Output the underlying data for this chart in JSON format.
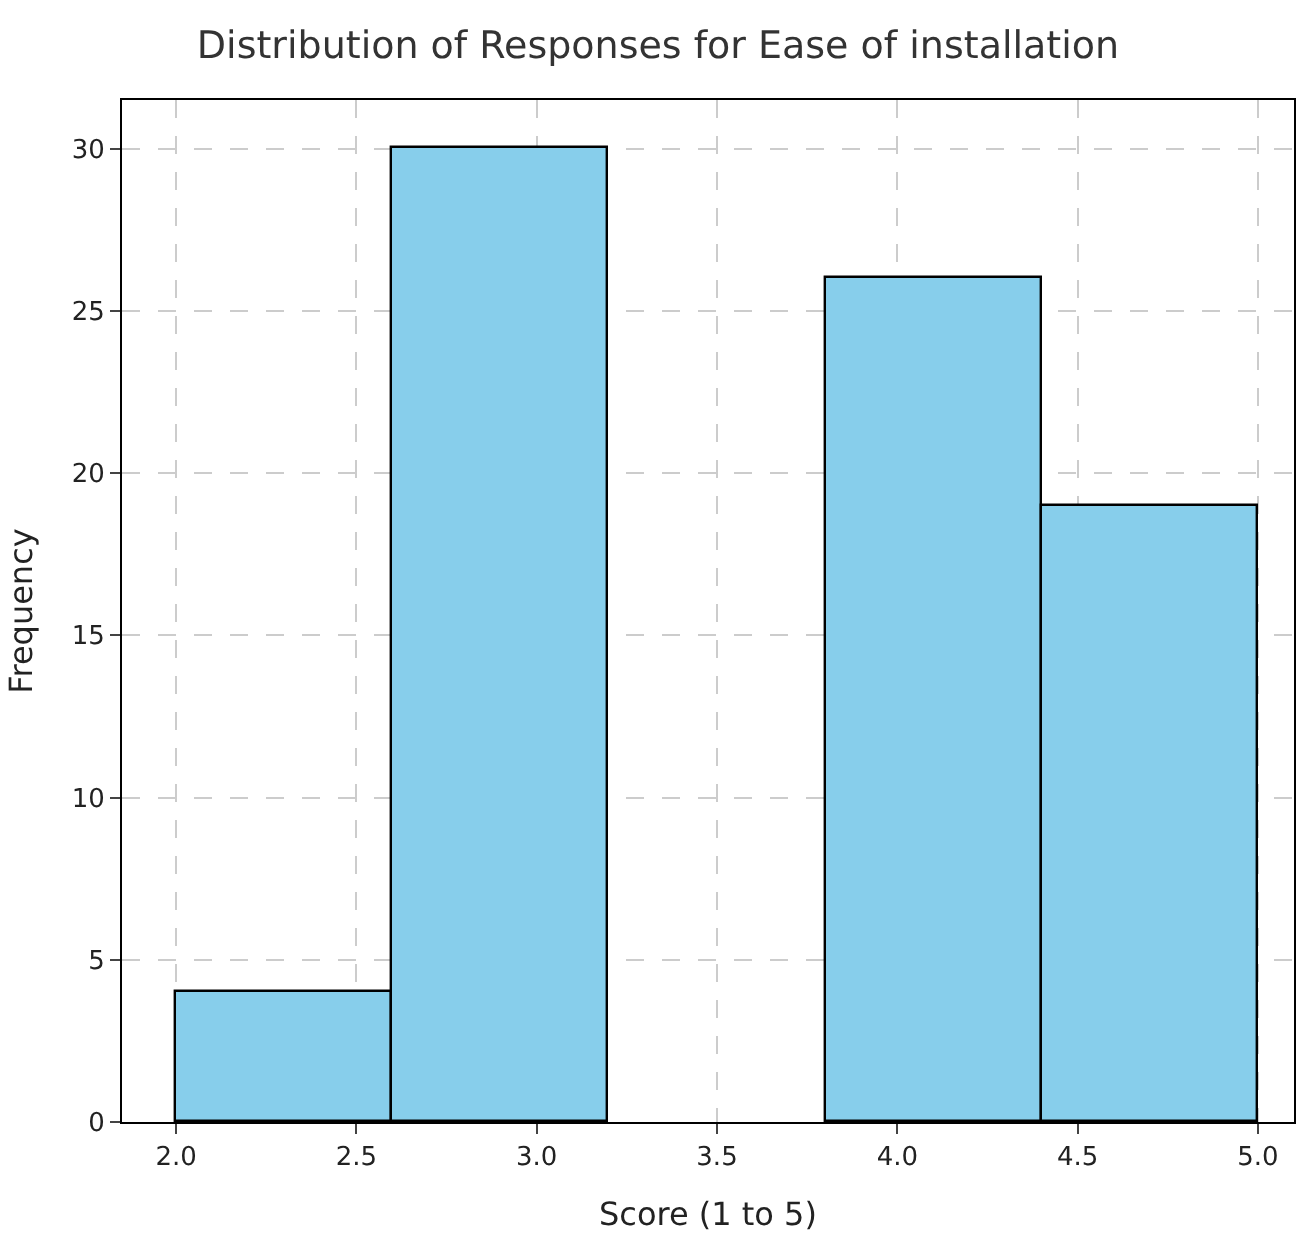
{
  "chart_data": {
    "type": "histogram",
    "title": "Distribution of Responses for Ease of installation",
    "xlabel": "Score (1 to 5)",
    "ylabel": "Frequency",
    "bins": [
      2.0,
      2.6,
      3.2,
      3.8,
      4.4,
      5.0
    ],
    "values": [
      4,
      30,
      0,
      26,
      19
    ],
    "color": "#87ceeb",
    "xlim": [
      1.85,
      5.1
    ],
    "xticks": [
      {
        "value": 2.0,
        "label": "2.0"
      },
      {
        "value": 2.5,
        "label": "2.5"
      },
      {
        "value": 3.0,
        "label": "3.0"
      },
      {
        "value": 3.5,
        "label": "3.5"
      },
      {
        "value": 4.0,
        "label": "4.0"
      },
      {
        "value": 4.5,
        "label": "4.5"
      },
      {
        "value": 5.0,
        "label": "5.0"
      }
    ],
    "ylim": [
      0,
      31.5
    ],
    "yticks": [
      0,
      5,
      10,
      15,
      20,
      25,
      30
    ],
    "grid": true
  }
}
